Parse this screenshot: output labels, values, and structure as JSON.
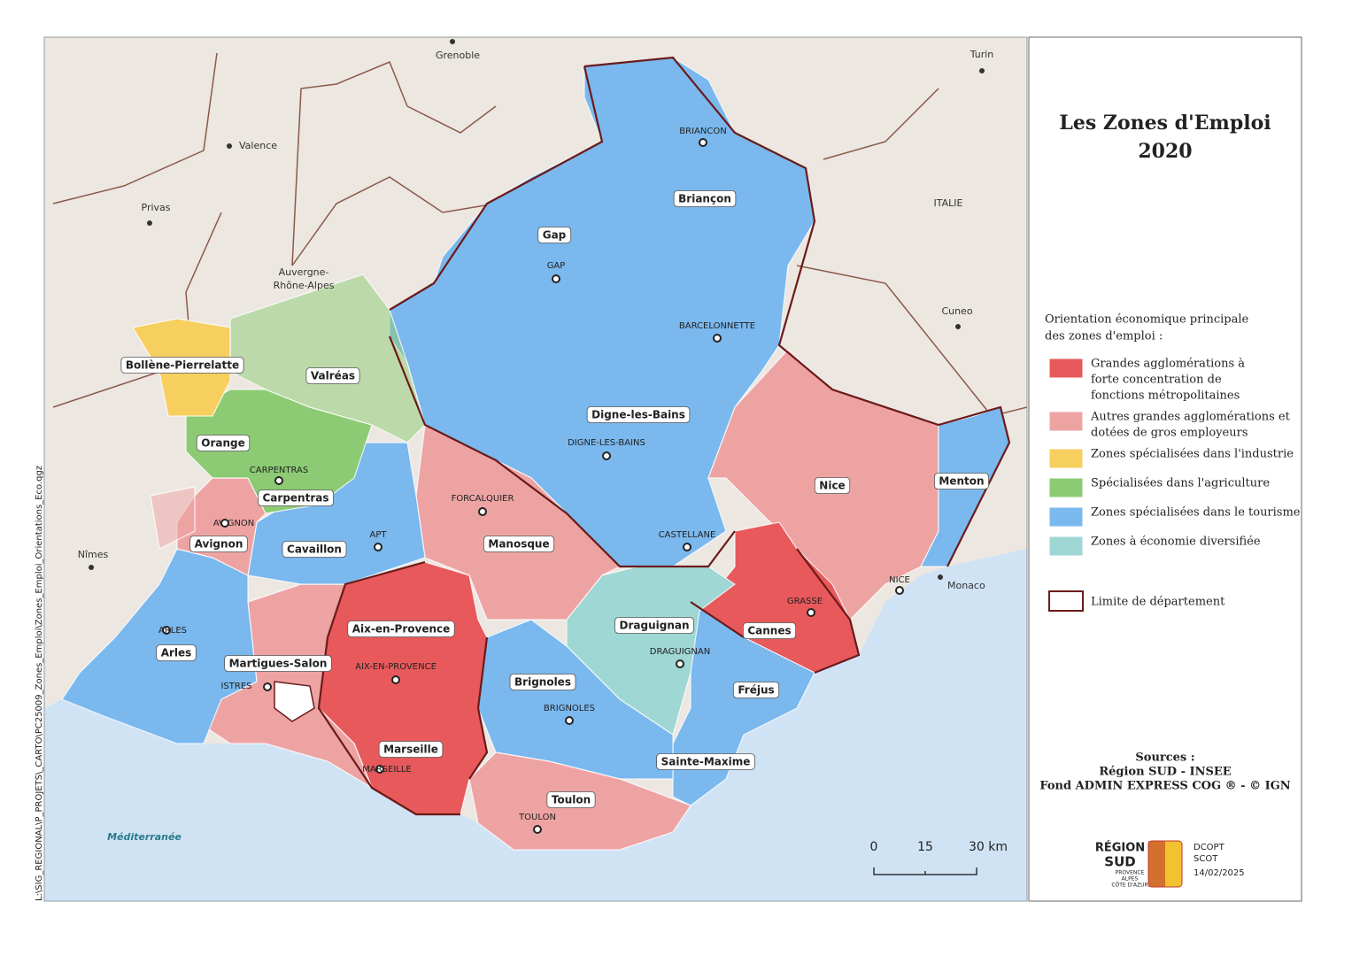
{
  "title": [
    "Les Zones d'Emploi",
    "2020"
  ],
  "legend": {
    "heading": [
      "Orientation économique principale",
      "des zones d'emploi :"
    ],
    "items": [
      {
        "label": [
          "Grandes agglomérations à",
          "forte concentration de",
          "fonctions métropolitaines"
        ],
        "color": "#e8595b"
      },
      {
        "label": [
          "Autres grandes agglomérations et",
          "dotées de gros employeurs"
        ],
        "color": "#eea3a3"
      },
      {
        "label": [
          "Zones spécialisées dans l'industrie"
        ],
        "color": "#f6cf5e"
      },
      {
        "label": [
          "Spécialisées dans l'agriculture"
        ],
        "color": "#8ccb73"
      },
      {
        "label": [
          "Zones spécialisées dans le tourisme"
        ],
        "color": "#7ab8ee"
      },
      {
        "label": [
          "Zones à économie diversifiée"
        ],
        "color": "#9ed7d3"
      }
    ],
    "border": "Limite de département"
  },
  "zones": [
    "Briançon",
    "Gap",
    "Digne-les-Bains",
    "Menton",
    "Nice",
    "Manosque",
    "Bollène-Pierrelatte",
    "Valréas",
    "Orange",
    "Carpentras",
    "Avignon",
    "Cavaillon",
    "Arles",
    "Martigues-Salon",
    "Aix-en-Provence",
    "Draguignan",
    "Cannes",
    "Fréjus",
    "Brignoles",
    "Marseille",
    "Sainte-Maxime",
    "Toulon"
  ],
  "cities": [
    "BRIANCON",
    "GAP",
    "BARCELONNETTE",
    "DIGNE-LES-BAINS",
    "FORCALQUIER",
    "CARPENTRAS",
    "AVIGNON",
    "APT",
    "CASTELLANE",
    "GRASSE",
    "NICE",
    "ARLES",
    "AIX-EN-PROVENCE",
    "DRAGUIGNAN",
    "ISTRES",
    "BRIGNOLES",
    "MARSEILLE",
    "TOULON"
  ],
  "places": [
    "Grenoble",
    "Turin",
    "Valence",
    "Privas",
    "ITALIE",
    "Cuneo",
    "Nîmes",
    "Monaco",
    "Méditerranée"
  ],
  "region_label": [
    "Auvergne-",
    "Rhône-Alpes"
  ],
  "scale": [
    "0",
    "15",
    "30 km"
  ],
  "sources": [
    "Sources :",
    "Région SUD - INSEE",
    "Fond ADMIN EXPRESS COG ® - © IGN"
  ],
  "logo": {
    "name": [
      "RÉGION",
      "SUD"
    ],
    "sub": [
      "PROVENCE",
      "ALPES",
      "CÔTE D'AZUR"
    ]
  },
  "credits": [
    "DCOPT",
    "SCOT",
    "14/02/2025"
  ],
  "file_path": "L:\\SIG_REGIONAL\\P_PROJETS\\_CARTO\\PC25009_Zones_Emploi\\Zones_Emploi_Orientations_Eco.qgz"
}
